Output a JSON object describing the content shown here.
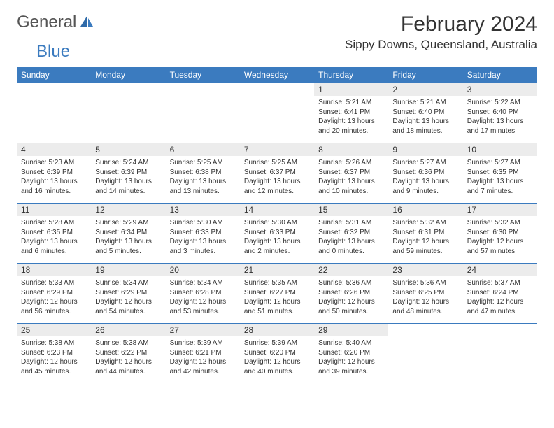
{
  "logo": {
    "text1": "General",
    "text2": "Blue"
  },
  "title": "February 2024",
  "location": "Sippy Downs, Queensland, Australia",
  "colors": {
    "accent": "#3b7bbf",
    "header_text": "#ffffff",
    "daynum_bg": "#ececec",
    "text": "#333333",
    "background": "#ffffff"
  },
  "day_names": [
    "Sunday",
    "Monday",
    "Tuesday",
    "Wednesday",
    "Thursday",
    "Friday",
    "Saturday"
  ],
  "weeks": [
    [
      null,
      null,
      null,
      null,
      {
        "n": "1",
        "sr": "5:21 AM",
        "ss": "6:41 PM",
        "dl": "13 hours and 20 minutes."
      },
      {
        "n": "2",
        "sr": "5:21 AM",
        "ss": "6:40 PM",
        "dl": "13 hours and 18 minutes."
      },
      {
        "n": "3",
        "sr": "5:22 AM",
        "ss": "6:40 PM",
        "dl": "13 hours and 17 minutes."
      }
    ],
    [
      {
        "n": "4",
        "sr": "5:23 AM",
        "ss": "6:39 PM",
        "dl": "13 hours and 16 minutes."
      },
      {
        "n": "5",
        "sr": "5:24 AM",
        "ss": "6:39 PM",
        "dl": "13 hours and 14 minutes."
      },
      {
        "n": "6",
        "sr": "5:25 AM",
        "ss": "6:38 PM",
        "dl": "13 hours and 13 minutes."
      },
      {
        "n": "7",
        "sr": "5:25 AM",
        "ss": "6:37 PM",
        "dl": "13 hours and 12 minutes."
      },
      {
        "n": "8",
        "sr": "5:26 AM",
        "ss": "6:37 PM",
        "dl": "13 hours and 10 minutes."
      },
      {
        "n": "9",
        "sr": "5:27 AM",
        "ss": "6:36 PM",
        "dl": "13 hours and 9 minutes."
      },
      {
        "n": "10",
        "sr": "5:27 AM",
        "ss": "6:35 PM",
        "dl": "13 hours and 7 minutes."
      }
    ],
    [
      {
        "n": "11",
        "sr": "5:28 AM",
        "ss": "6:35 PM",
        "dl": "13 hours and 6 minutes."
      },
      {
        "n": "12",
        "sr": "5:29 AM",
        "ss": "6:34 PM",
        "dl": "13 hours and 5 minutes."
      },
      {
        "n": "13",
        "sr": "5:30 AM",
        "ss": "6:33 PM",
        "dl": "13 hours and 3 minutes."
      },
      {
        "n": "14",
        "sr": "5:30 AM",
        "ss": "6:33 PM",
        "dl": "13 hours and 2 minutes."
      },
      {
        "n": "15",
        "sr": "5:31 AM",
        "ss": "6:32 PM",
        "dl": "13 hours and 0 minutes."
      },
      {
        "n": "16",
        "sr": "5:32 AM",
        "ss": "6:31 PM",
        "dl": "12 hours and 59 minutes."
      },
      {
        "n": "17",
        "sr": "5:32 AM",
        "ss": "6:30 PM",
        "dl": "12 hours and 57 minutes."
      }
    ],
    [
      {
        "n": "18",
        "sr": "5:33 AM",
        "ss": "6:29 PM",
        "dl": "12 hours and 56 minutes."
      },
      {
        "n": "19",
        "sr": "5:34 AM",
        "ss": "6:29 PM",
        "dl": "12 hours and 54 minutes."
      },
      {
        "n": "20",
        "sr": "5:34 AM",
        "ss": "6:28 PM",
        "dl": "12 hours and 53 minutes."
      },
      {
        "n": "21",
        "sr": "5:35 AM",
        "ss": "6:27 PM",
        "dl": "12 hours and 51 minutes."
      },
      {
        "n": "22",
        "sr": "5:36 AM",
        "ss": "6:26 PM",
        "dl": "12 hours and 50 minutes."
      },
      {
        "n": "23",
        "sr": "5:36 AM",
        "ss": "6:25 PM",
        "dl": "12 hours and 48 minutes."
      },
      {
        "n": "24",
        "sr": "5:37 AM",
        "ss": "6:24 PM",
        "dl": "12 hours and 47 minutes."
      }
    ],
    [
      {
        "n": "25",
        "sr": "5:38 AM",
        "ss": "6:23 PM",
        "dl": "12 hours and 45 minutes."
      },
      {
        "n": "26",
        "sr": "5:38 AM",
        "ss": "6:22 PM",
        "dl": "12 hours and 44 minutes."
      },
      {
        "n": "27",
        "sr": "5:39 AM",
        "ss": "6:21 PM",
        "dl": "12 hours and 42 minutes."
      },
      {
        "n": "28",
        "sr": "5:39 AM",
        "ss": "6:20 PM",
        "dl": "12 hours and 40 minutes."
      },
      {
        "n": "29",
        "sr": "5:40 AM",
        "ss": "6:20 PM",
        "dl": "12 hours and 39 minutes."
      },
      null,
      null
    ]
  ],
  "labels": {
    "sunrise": "Sunrise:",
    "sunset": "Sunset:",
    "daylight": "Daylight:"
  }
}
